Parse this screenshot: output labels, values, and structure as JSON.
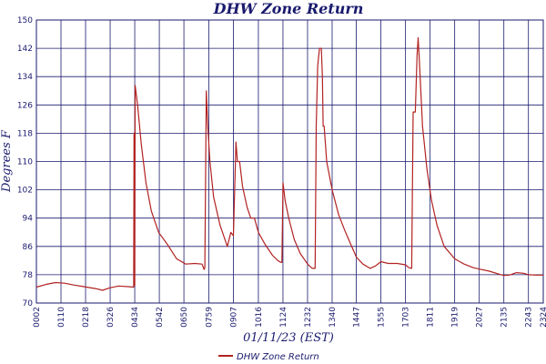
{
  "chart_data": {
    "type": "line",
    "title": "DHW Zone Return",
    "xlabel": "01/11/23 (EST)",
    "ylabel": "Degrees F",
    "ylim": [
      70,
      150
    ],
    "yticks": [
      70,
      78,
      86,
      94,
      102,
      110,
      118,
      126,
      134,
      142,
      150
    ],
    "xlim": [
      "00:02",
      "23:24"
    ],
    "xticks": [
      "00:02",
      "01:10",
      "02:18",
      "03:26",
      "04:34",
      "05:42",
      "06:50",
      "07:59",
      "09:07",
      "10:16",
      "11:24",
      "12:32",
      "13:40",
      "14:47",
      "15:55",
      "17:03",
      "18:11",
      "19:19",
      "20:27",
      "21:35",
      "22:43",
      "23:24"
    ],
    "grid": true,
    "legend_position": "bottom",
    "colors": {
      "series": "#b22222",
      "grid": "#1a1a6e",
      "text": "#1a1a6e"
    },
    "series": [
      {
        "name": "DHW Zone Return",
        "points": [
          [
            "00:02",
            74.5
          ],
          [
            "00:30",
            75.3
          ],
          [
            "00:55",
            75.8
          ],
          [
            "01:20",
            75.6
          ],
          [
            "01:45",
            75.1
          ],
          [
            "02:15",
            74.6
          ],
          [
            "02:45",
            74.1
          ],
          [
            "03:05",
            73.6
          ],
          [
            "03:25",
            74.3
          ],
          [
            "03:50",
            74.8
          ],
          [
            "04:20",
            74.6
          ],
          [
            "04:31",
            74.5
          ],
          [
            "04:32",
            118.0
          ],
          [
            "04:33",
            75.0
          ],
          [
            "04:34",
            75.0
          ],
          [
            "04:35",
            131.5
          ],
          [
            "04:42",
            126.0
          ],
          [
            "04:52",
            115.0
          ],
          [
            "05:05",
            104.0
          ],
          [
            "05:20",
            96.0
          ],
          [
            "05:40",
            90.0
          ],
          [
            "06:05",
            86.5
          ],
          [
            "06:30",
            82.5
          ],
          [
            "06:55",
            81.0
          ],
          [
            "07:20",
            81.2
          ],
          [
            "07:40",
            81.0
          ],
          [
            "07:46",
            79.5
          ],
          [
            "07:48",
            80.0
          ],
          [
            "07:52",
            130.0
          ],
          [
            "07:56",
            120.0
          ],
          [
            "08:02",
            110.0
          ],
          [
            "08:12",
            100.0
          ],
          [
            "08:30",
            92.0
          ],
          [
            "08:50",
            86.0
          ],
          [
            "09:00",
            90.0
          ],
          [
            "09:07",
            89.0
          ],
          [
            "09:14",
            115.5
          ],
          [
            "09:18",
            110.0
          ],
          [
            "09:24",
            110.0
          ],
          [
            "09:32",
            103.0
          ],
          [
            "09:45",
            97.0
          ],
          [
            "09:55",
            94.0
          ],
          [
            "10:05",
            94.0
          ],
          [
            "10:16",
            90.0
          ],
          [
            "10:35",
            86.5
          ],
          [
            "10:55",
            83.5
          ],
          [
            "11:10",
            82.0
          ],
          [
            "11:18",
            81.5
          ],
          [
            "11:21",
            81.5
          ],
          [
            "11:24",
            104.0
          ],
          [
            "11:30",
            99.0
          ],
          [
            "11:40",
            94.0
          ],
          [
            "11:55",
            88.0
          ],
          [
            "12:12",
            84.0
          ],
          [
            "12:32",
            81.0
          ],
          [
            "12:45",
            79.8
          ],
          [
            "12:53",
            79.8
          ],
          [
            "12:56",
            120.0
          ],
          [
            "13:00",
            137.0
          ],
          [
            "13:05",
            142.0
          ],
          [
            "13:10",
            142.0
          ],
          [
            "13:13",
            134.0
          ],
          [
            "13:15",
            120.0
          ],
          [
            "13:18",
            120.0
          ],
          [
            "13:25",
            110.0
          ],
          [
            "13:40",
            102.0
          ],
          [
            "13:58",
            95.0
          ],
          [
            "14:15",
            90.5
          ],
          [
            "14:32",
            86.5
          ],
          [
            "14:47",
            83.0
          ],
          [
            "15:05",
            81.0
          ],
          [
            "15:25",
            79.8
          ],
          [
            "15:40",
            80.5
          ],
          [
            "15:55",
            81.7
          ],
          [
            "16:15",
            81.2
          ],
          [
            "16:40",
            81.2
          ],
          [
            "17:03",
            80.8
          ],
          [
            "17:12",
            80.0
          ],
          [
            "17:20",
            79.8
          ],
          [
            "17:24",
            124.0
          ],
          [
            "17:30",
            124.0
          ],
          [
            "17:35",
            140.0
          ],
          [
            "17:38",
            145.0
          ],
          [
            "17:43",
            135.0
          ],
          [
            "17:50",
            120.0
          ],
          [
            "18:02",
            108.0
          ],
          [
            "18:15",
            99.0
          ],
          [
            "18:30",
            92.0
          ],
          [
            "18:50",
            86.0
          ],
          [
            "19:19",
            82.5
          ],
          [
            "19:45",
            81.0
          ],
          [
            "20:10",
            80.0
          ],
          [
            "20:27",
            79.6
          ],
          [
            "20:55",
            79.0
          ],
          [
            "21:20",
            78.2
          ],
          [
            "21:35",
            77.8
          ],
          [
            "21:50",
            77.9
          ],
          [
            "22:10",
            78.6
          ],
          [
            "22:30",
            78.4
          ],
          [
            "22:43",
            78.0
          ],
          [
            "23:05",
            77.9
          ],
          [
            "23:24",
            77.9
          ]
        ]
      }
    ]
  }
}
